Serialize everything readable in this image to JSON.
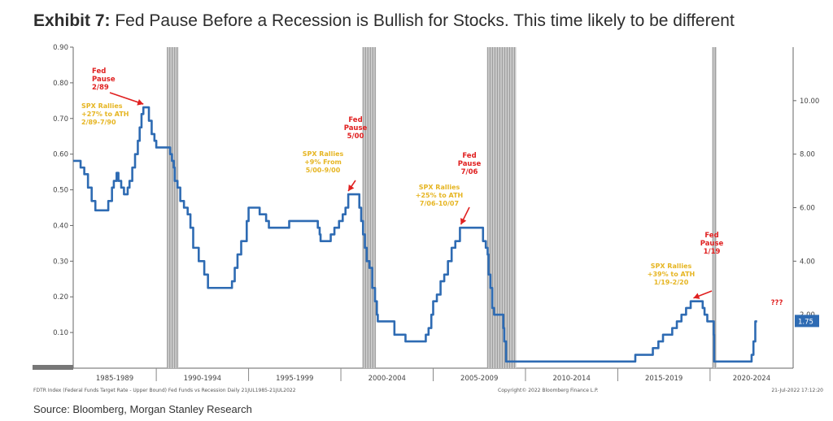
{
  "exhibit": {
    "label": "Exhibit 7:",
    "title": "Fed Pause Before a Recession is Bullish for Stocks. This time likely to be different"
  },
  "source": "Source: Bloomberg, Morgan Stanley Research",
  "footer": {
    "index_note": "FDTR Index (Federal Funds Target Rate - Upper Bound) Fed Funds vs Recession  Daily 21JUL1985-21JUL2022",
    "copyright": "Copyright© 2022 Bloomberg Finance L.P.",
    "timestamp": "21-Jul-2022 17:12:20"
  },
  "chart_data": {
    "type": "line",
    "title": "Fed Pause Before a Recession is Bullish for Stocks. This time likely to be different",
    "xlim": [
      1985.5,
      2024.5
    ],
    "x_periods": [
      "1985-1989",
      "1990-1994",
      "1995-1999",
      "2000-2004",
      "2005-2009",
      "2010-2014",
      "2015-2019",
      "2020-2024"
    ],
    "left_axis": {
      "lim": [
        0,
        0.9
      ],
      "ticks": [
        0.1,
        0.2,
        0.3,
        0.4,
        0.5,
        0.6,
        0.7,
        0.8,
        0.9
      ],
      "labels": [
        "0.10",
        "0.20",
        "0.30",
        "0.40",
        "0.50",
        "0.60",
        "0.70",
        "0.80",
        "0.90"
      ]
    },
    "right_axis": {
      "lim": [
        0,
        12
      ],
      "ticks": [
        4,
        6,
        8,
        10
      ],
      "labels": [
        "4.00",
        "6.00",
        "8.00",
        "10.00"
      ],
      "partial_tick": {
        "value": 2,
        "label": "2.00"
      },
      "last_value": 1.75,
      "last_value_label": "1.75"
    },
    "recessions": [
      [
        1990.6,
        1991.2
      ],
      [
        2001.2,
        2001.9
      ],
      [
        2007.95,
        2009.5
      ],
      [
        2020.15,
        2020.35
      ]
    ],
    "series": [
      {
        "name": "Fed Funds Target Rate - Upper Bound",
        "color": "#2e6bb3",
        "points": [
          [
            1985.5,
            7.75
          ],
          [
            1985.9,
            7.5
          ],
          [
            1986.1,
            7.25
          ],
          [
            1986.3,
            6.75
          ],
          [
            1986.5,
            6.25
          ],
          [
            1986.7,
            5.9
          ],
          [
            1987.2,
            5.9
          ],
          [
            1987.4,
            6.25
          ],
          [
            1987.6,
            6.75
          ],
          [
            1987.7,
            7.0
          ],
          [
            1987.85,
            7.3
          ],
          [
            1987.95,
            7.0
          ],
          [
            1988.1,
            6.75
          ],
          [
            1988.25,
            6.5
          ],
          [
            1988.45,
            6.75
          ],
          [
            1988.55,
            7.0
          ],
          [
            1988.7,
            7.5
          ],
          [
            1988.85,
            8.0
          ],
          [
            1989.0,
            8.5
          ],
          [
            1989.1,
            9.0
          ],
          [
            1989.2,
            9.5
          ],
          [
            1989.3,
            9.75
          ],
          [
            1989.5,
            9.75
          ],
          [
            1989.6,
            9.25
          ],
          [
            1989.75,
            8.75
          ],
          [
            1989.9,
            8.5
          ],
          [
            1990.0,
            8.25
          ],
          [
            1990.6,
            8.25
          ],
          [
            1990.75,
            8.0
          ],
          [
            1990.85,
            7.75
          ],
          [
            1990.95,
            7.5
          ],
          [
            1991.0,
            7.0
          ],
          [
            1991.15,
            6.75
          ],
          [
            1991.3,
            6.25
          ],
          [
            1991.5,
            6.0
          ],
          [
            1991.7,
            5.75
          ],
          [
            1991.85,
            5.25
          ],
          [
            1992.0,
            4.5
          ],
          [
            1992.3,
            4.0
          ],
          [
            1992.6,
            3.5
          ],
          [
            1992.8,
            3.0
          ],
          [
            1994.0,
            3.0
          ],
          [
            1994.1,
            3.25
          ],
          [
            1994.25,
            3.75
          ],
          [
            1994.4,
            4.25
          ],
          [
            1994.6,
            4.75
          ],
          [
            1994.9,
            5.5
          ],
          [
            1995.0,
            6.0
          ],
          [
            1995.6,
            5.75
          ],
          [
            1995.95,
            5.5
          ],
          [
            1996.1,
            5.25
          ],
          [
            1997.2,
            5.5
          ],
          [
            1998.75,
            5.25
          ],
          [
            1998.85,
            5.0
          ],
          [
            1998.9,
            4.75
          ],
          [
            1999.45,
            5.0
          ],
          [
            1999.65,
            5.25
          ],
          [
            1999.9,
            5.5
          ],
          [
            2000.1,
            5.75
          ],
          [
            2000.25,
            6.0
          ],
          [
            2000.4,
            6.5
          ],
          [
            2000.95,
            6.5
          ],
          [
            2001.0,
            6.0
          ],
          [
            2001.1,
            5.5
          ],
          [
            2001.2,
            5.0
          ],
          [
            2001.3,
            4.5
          ],
          [
            2001.4,
            4.0
          ],
          [
            2001.55,
            3.75
          ],
          [
            2001.7,
            3.0
          ],
          [
            2001.85,
            2.5
          ],
          [
            2001.95,
            2.0
          ],
          [
            2002.0,
            1.75
          ],
          [
            2002.85,
            1.75
          ],
          [
            2002.9,
            1.25
          ],
          [
            2003.5,
            1.0
          ],
          [
            2004.5,
            1.0
          ],
          [
            2004.6,
            1.25
          ],
          [
            2004.75,
            1.5
          ],
          [
            2004.9,
            2.0
          ],
          [
            2005.0,
            2.5
          ],
          [
            2005.2,
            2.75
          ],
          [
            2005.4,
            3.25
          ],
          [
            2005.6,
            3.5
          ],
          [
            2005.8,
            4.0
          ],
          [
            2006.0,
            4.5
          ],
          [
            2006.2,
            4.75
          ],
          [
            2006.45,
            5.25
          ],
          [
            2007.6,
            5.25
          ],
          [
            2007.7,
            4.75
          ],
          [
            2007.85,
            4.5
          ],
          [
            2007.95,
            4.25
          ],
          [
            2008.0,
            3.5
          ],
          [
            2008.1,
            3.0
          ],
          [
            2008.2,
            2.25
          ],
          [
            2008.3,
            2.0
          ],
          [
            2008.75,
            2.0
          ],
          [
            2008.8,
            1.5
          ],
          [
            2008.85,
            1.0
          ],
          [
            2008.95,
            0.25
          ],
          [
            2015.9,
            0.25
          ],
          [
            2015.95,
            0.5
          ],
          [
            2016.9,
            0.75
          ],
          [
            2017.2,
            1.0
          ],
          [
            2017.45,
            1.25
          ],
          [
            2017.95,
            1.5
          ],
          [
            2018.2,
            1.75
          ],
          [
            2018.45,
            2.0
          ],
          [
            2018.7,
            2.25
          ],
          [
            2018.95,
            2.5
          ],
          [
            2019.55,
            2.5
          ],
          [
            2019.6,
            2.25
          ],
          [
            2019.7,
            2.0
          ],
          [
            2019.85,
            1.75
          ],
          [
            2020.15,
            1.75
          ],
          [
            2020.2,
            1.25
          ],
          [
            2020.22,
            0.25
          ],
          [
            2022.2,
            0.25
          ],
          [
            2022.25,
            0.5
          ],
          [
            2022.35,
            1.0
          ],
          [
            2022.45,
            1.75
          ],
          [
            2022.55,
            1.75
          ]
        ]
      }
    ],
    "annotations": [
      {
        "label": "Fed Pause 2/89",
        "lines": [
          "Fed",
          "Pause",
          "2/89"
        ],
        "color": "#e02020",
        "arrow_to": [
          1989.3,
          9.75
        ]
      },
      {
        "label": "SPX Rallies +27% to ATH 2/89-7/90",
        "lines": [
          "SPX Rallies",
          "+27% to ATH",
          "2/89-7/90"
        ],
        "color": "#e6b522"
      },
      {
        "label": "Fed Pause 5/00",
        "lines": [
          "Fed",
          "Pause",
          "5/00"
        ],
        "color": "#e02020",
        "arrow_to": [
          2000.4,
          6.5
        ]
      },
      {
        "label": "SPX Rallies +9% From 5/00-9/00",
        "lines": [
          "SPX Rallies",
          "+9% From",
          "5/00-9/00"
        ],
        "color": "#e6b522"
      },
      {
        "label": "Fed Pause 7/06",
        "lines": [
          "Fed",
          "Pause",
          "7/06"
        ],
        "color": "#e02020",
        "arrow_to": [
          2006.5,
          5.25
        ]
      },
      {
        "label": "SPX Rallies +25% to ATH 7/06-10/07",
        "lines": [
          "SPX Rallies",
          "+25% to ATH",
          "7/06-10/07"
        ],
        "color": "#e6b522"
      },
      {
        "label": "Fed Pause 1/19",
        "lines": [
          "Fed",
          "Pause",
          "1/19"
        ],
        "color": "#e02020",
        "arrow_to": [
          2019.1,
          2.5
        ]
      },
      {
        "label": "SPX Rallies +39% to ATH 1/19-2/20",
        "lines": [
          "SPX Rallies",
          "+39% to ATH",
          "1/19-2/20"
        ],
        "color": "#e6b522"
      },
      {
        "label": "???",
        "lines": [
          "???"
        ],
        "color": "#e02020"
      }
    ],
    "colors": {
      "line": "#2e6bb3",
      "recession": "#9e9e9e",
      "fed_pause": "#e02020",
      "spx_rally": "#e6b522",
      "axis": "#555555"
    }
  }
}
